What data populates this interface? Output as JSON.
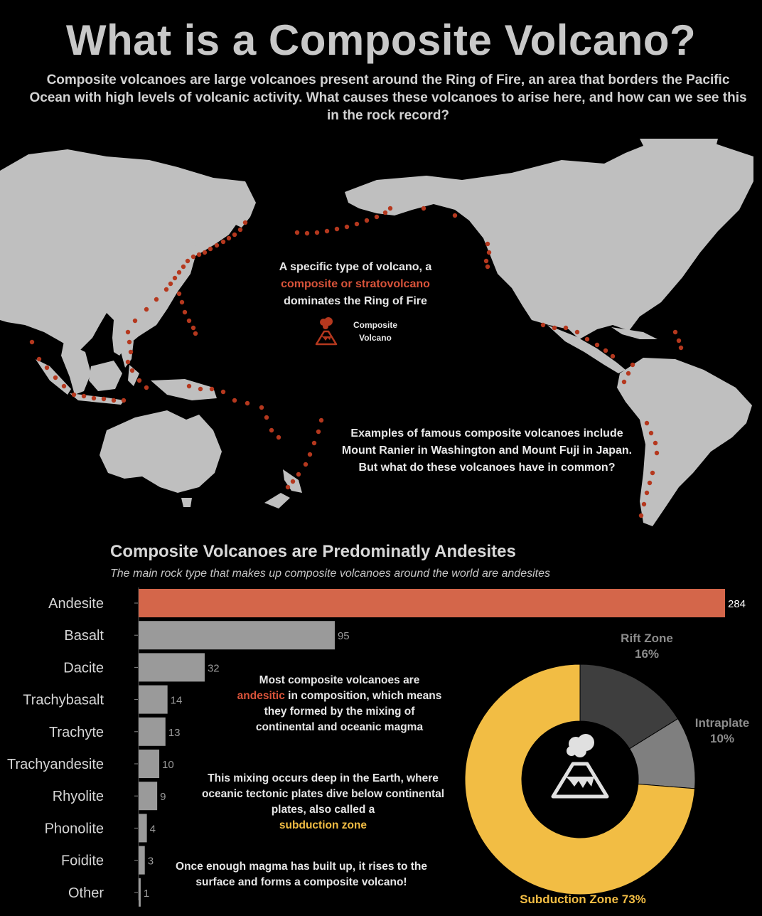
{
  "header": {
    "title": "What is a Composite Volcano?",
    "intro": "Composite volcanoes are large volcanoes present around the Ring of Fire, an area that borders the Pacific Ocean with high levels of volcanic activity. What causes these volcanoes to arise here, and how can we see this in the rock record?"
  },
  "map": {
    "note1_a": "A specific type of volcano, a",
    "note1_b": "composite or stratovolcano",
    "note1_c": "dominates the Ring of Fire",
    "legend_label": "Composite Volcano",
    "legend_icon": "volcano-icon",
    "note2": "Examples of famous composite volcanoes include Mount Ranier in Washington and Mount Fuji in Japan. But what do these volcanoes have in common?",
    "colors": {
      "land": "#bfbfbf",
      "volcano": "#b5381e"
    }
  },
  "notes": {
    "mid1_a": "Most composite volcanoes are",
    "mid1_b": "andesitic",
    "mid1_c": "in composition, which means they formed by the mixing of continental and oceanic magma",
    "mid2_a": "This mixing occurs deep in the Earth, where oceanic tectonic plates dive below continental plates, also called a",
    "mid2_b": "subduction zone",
    "mid3": "Once enough magma has built up, it rises to the surface and forms a composite volcano!"
  },
  "chart_data": [
    {
      "type": "bar",
      "orientation": "horizontal",
      "title": "Composite Volcanoes are Predominatly Andesites",
      "subtitle": "The main rock type that makes up composite volcanoes around the world are andesites",
      "categories": [
        "Andesite",
        "Basalt",
        "Dacite",
        "Trachybasalt",
        "Trachyte",
        "Trachyandesite",
        "Rhyolite",
        "Phonolite",
        "Foidite",
        "Other"
      ],
      "values": [
        284,
        95,
        32,
        14,
        13,
        10,
        9,
        4,
        3,
        1
      ],
      "xlim": [
        0,
        284
      ],
      "highlight": "Andesite",
      "colors": {
        "highlight": "#d4664a",
        "default": "#9a9a9a"
      }
    },
    {
      "type": "pie",
      "style": "donut",
      "slices": [
        {
          "name": "Rift Zone",
          "label": "16%",
          "value": 16,
          "color": "#3e3e3e"
        },
        {
          "name": "Intraplate",
          "label": "10%",
          "value": 10,
          "color": "#7f7f7f"
        },
        {
          "name": "Subduction Zone",
          "label": "73%",
          "value": 73,
          "color": "#f2bd44"
        }
      ],
      "center_icon": "volcano-icon"
    }
  ]
}
